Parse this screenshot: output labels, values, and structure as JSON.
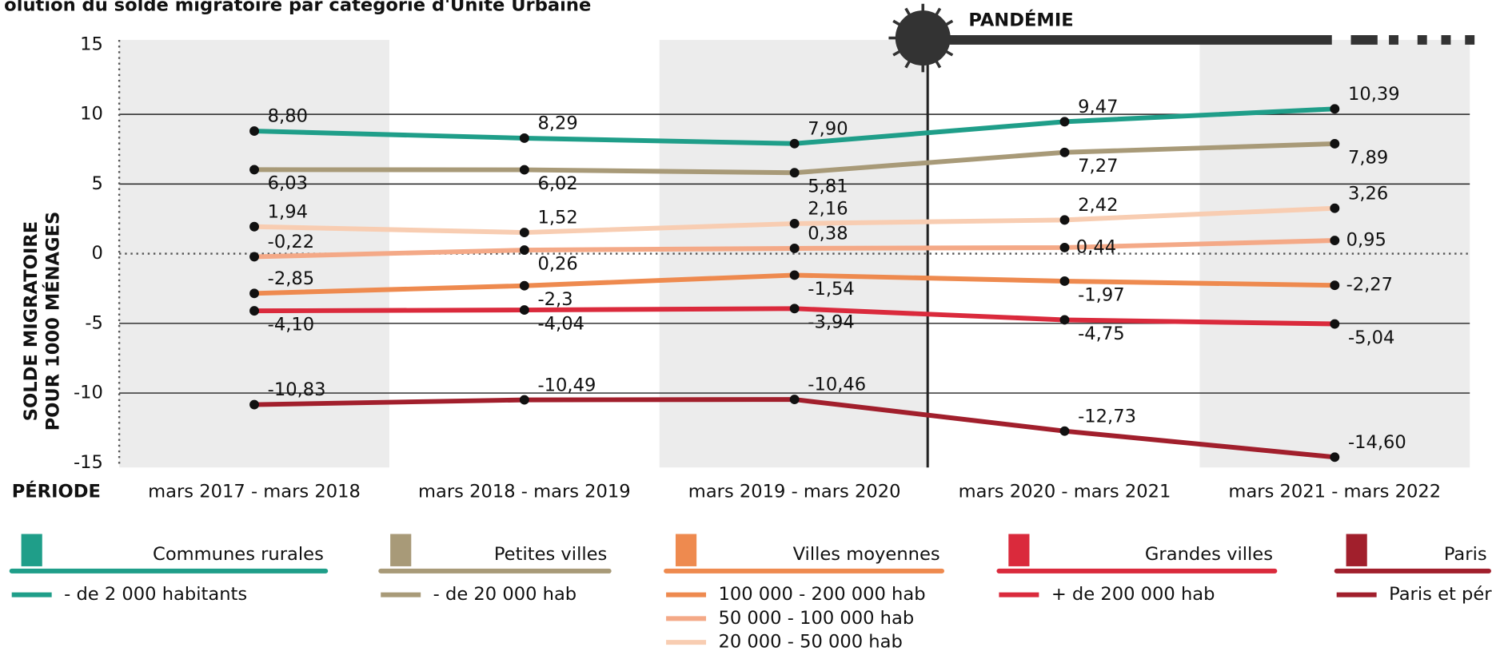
{
  "chart_data": {
    "type": "line",
    "title": "olution du solde migratoire par catégorie d'Unité Urbaine",
    "y_label": [
      "SOLDE MIGRATOIRE",
      "POUR 1000 MÉNAGES"
    ],
    "x_label": "PÉRIODE",
    "annotation": "PANDÉMIE",
    "categories": [
      "mars 2017 - mars 2018",
      "mars 2018 - mars 2019",
      "mars 2019 - mars 2020",
      "mars 2020 - mars 2021",
      "mars 2021 - mars 2022"
    ],
    "ylim": [
      -15,
      15
    ],
    "yticks": [
      15,
      10,
      5,
      0,
      -5,
      -10,
      -15
    ],
    "grid": true,
    "series": [
      {
        "name": "- de 2 000 habitants",
        "color": "#1f9e89",
        "values": [
          8.8,
          8.29,
          7.9,
          9.47,
          10.39
        ],
        "value_labels": [
          "8,80",
          "8,29",
          "7,90",
          "9,47",
          "10,39"
        ]
      },
      {
        "name": "- de 20 000 hab",
        "color": "#a89a78",
        "values": [
          6.03,
          6.02,
          5.81,
          7.27,
          7.89
        ],
        "value_labels": [
          "6,03",
          "6,02",
          "5,81",
          "7,27",
          "7,89"
        ]
      },
      {
        "name": "100 000 - 200 000 hab",
        "color": "#ee8a4f",
        "values": [
          -2.85,
          -2.3,
          -1.54,
          -1.97,
          -2.27
        ],
        "value_labels": [
          "-2,85",
          "-2,3",
          "-1,54",
          "-1,97",
          "-2,27"
        ]
      },
      {
        "name": "50 000 - 100 000 hab",
        "color": "#f4a987",
        "values": [
          -0.22,
          0.26,
          0.38,
          0.44,
          0.95
        ],
        "value_labels": [
          "-0,22",
          "0,26",
          "0,38",
          "0,44",
          "0,95"
        ]
      },
      {
        "name": "20 000 - 50 000 hab",
        "color": "#f8cdb2",
        "values": [
          1.94,
          1.52,
          2.16,
          2.42,
          3.26
        ],
        "value_labels": [
          "1,94",
          "1,52",
          "2,16",
          "2,42",
          "3,26"
        ]
      },
      {
        "name": "+ de 200 000 hab",
        "color": "#da2a3c",
        "values": [
          -4.1,
          -4.04,
          -3.94,
          -4.75,
          -5.04
        ],
        "value_labels": [
          "-4,10",
          "-4,04",
          "-3,94",
          "-4,75",
          "-5,04"
        ]
      },
      {
        "name": "Paris et périphérie",
        "color": "#a11f2c",
        "values": [
          -10.83,
          -10.49,
          -10.46,
          -12.73,
          -14.6
        ],
        "value_labels": [
          "-10,83",
          "-10,49",
          "-10,46",
          "-12,73",
          "-14,60"
        ]
      }
    ],
    "legend_groups": [
      {
        "title": "Communes rurales",
        "series": [
          0
        ]
      },
      {
        "title": "Petites villes",
        "series": [
          1
        ]
      },
      {
        "title": "Villes moyennes",
        "series": [
          2,
          3,
          4
        ]
      },
      {
        "title": "Grandes villes",
        "series": [
          5
        ]
      },
      {
        "title": "Paris",
        "series": [
          6
        ]
      }
    ]
  }
}
